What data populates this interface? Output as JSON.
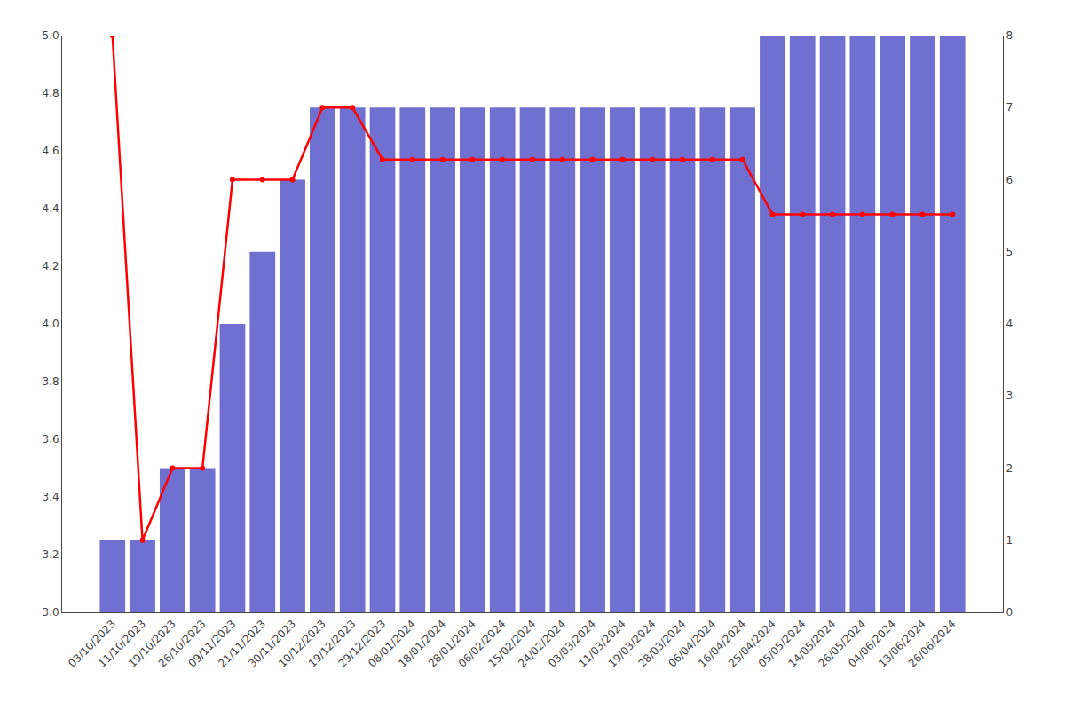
{
  "chart_data": {
    "type": "bar",
    "categories": [
      "03/10/2023",
      "11/10/2023",
      "19/10/2023",
      "26/10/2023",
      "09/11/2023",
      "21/11/2023",
      "30/11/2023",
      "10/12/2023",
      "19/12/2023",
      "29/12/2023",
      "08/01/2024",
      "18/01/2024",
      "28/01/2024",
      "06/02/2024",
      "15/02/2024",
      "24/02/2024",
      "03/03/2024",
      "11/03/2024",
      "19/03/2024",
      "28/03/2024",
      "06/04/2024",
      "16/04/2024",
      "25/04/2024",
      "05/05/2024",
      "14/05/2024",
      "26/05/2024",
      "04/06/2024",
      "13/06/2024",
      "26/06/2024"
    ],
    "series": [
      {
        "type": "bar",
        "axis": "y2",
        "color": "#7070d0",
        "values": [
          1,
          1,
          2,
          2,
          4,
          5,
          6,
          7,
          7,
          7,
          7,
          7,
          7,
          7,
          7,
          7,
          7,
          7,
          7,
          7,
          7,
          7,
          8,
          8,
          8,
          8,
          8,
          8,
          8
        ]
      },
      {
        "type": "line",
        "color": "#ff0000",
        "marker": "circle",
        "values": [
          5.0,
          3.25,
          3.5,
          3.5,
          4.5,
          4.5,
          4.5,
          4.75,
          4.75,
          4.57,
          4.57,
          4.57,
          4.57,
          4.57,
          4.57,
          4.57,
          4.57,
          4.57,
          4.57,
          4.57,
          4.57,
          4.57,
          4.38,
          4.38,
          4.38,
          4.38,
          4.38,
          4.38,
          4.38
        ]
      }
    ],
    "ylim": [
      3.0,
      5.0
    ],
    "yticks": [
      {
        "value": 3.0,
        "label": "3.0"
      },
      3.2,
      3.4,
      3.6,
      3.8,
      {
        "value": 4.0,
        "label": "4.0"
      },
      4.2,
      4.4,
      4.6,
      4.8,
      {
        "value": 5.0,
        "label": "5.0"
      }
    ],
    "y2lim": [
      0,
      8
    ],
    "y2ticks": [
      0,
      1,
      2,
      3,
      4,
      5,
      6,
      7,
      8
    ],
    "grid": false
  }
}
